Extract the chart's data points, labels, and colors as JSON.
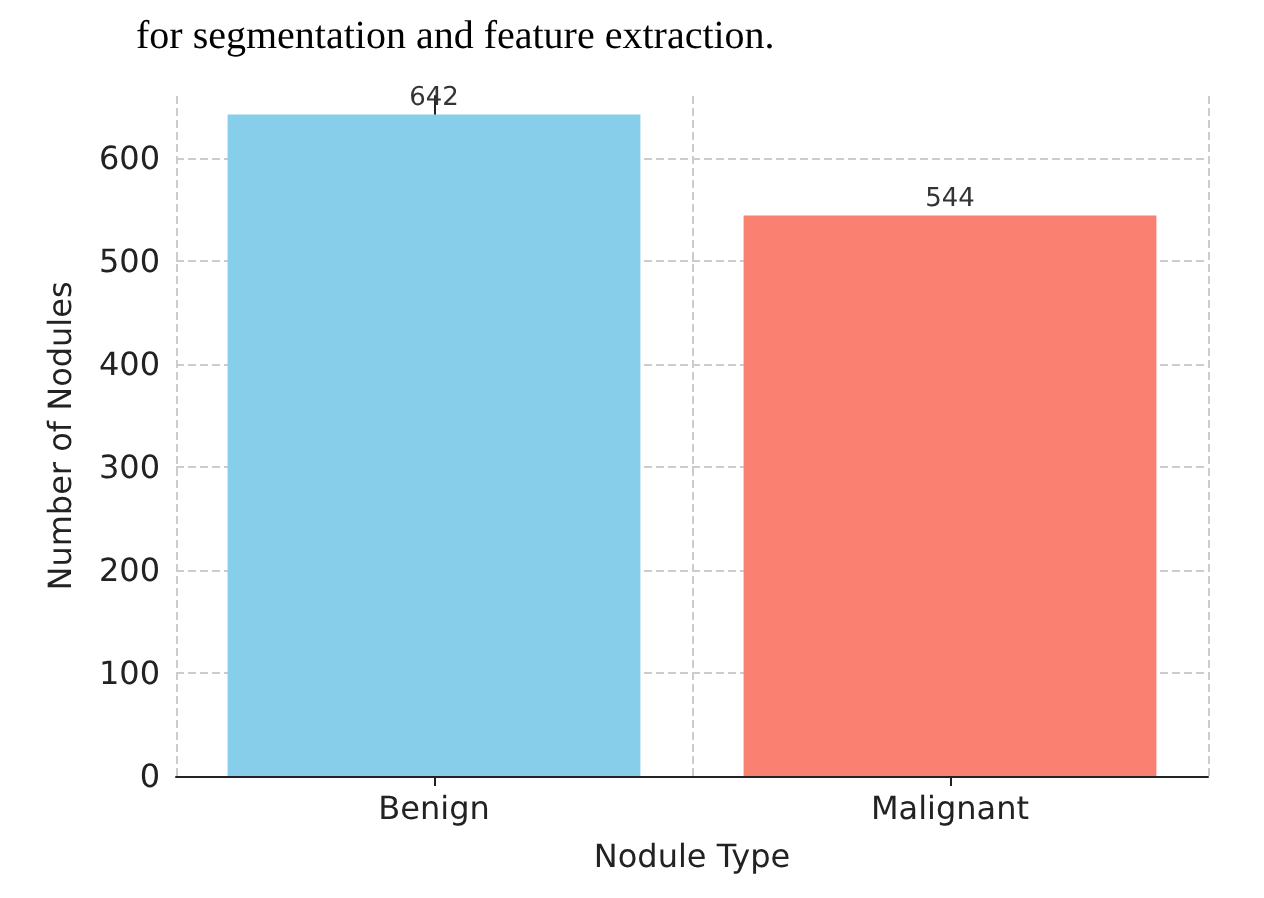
{
  "chart_data": {
    "type": "bar",
    "annotations": [
      "for segmentation and feature extraction."
    ],
    "xlabel": "Nodule Type",
    "ylabel": "Number of Nodules",
    "categories": [
      "Benign",
      "Malignant"
    ],
    "values": [
      642,
      544
    ],
    "colors": [
      "#87ceeb",
      "#fa8072"
    ],
    "ylim": [
      0,
      660
    ],
    "yticks": [
      0,
      100,
      200,
      300,
      400,
      500,
      600
    ],
    "grid": true,
    "data_labels": true
  }
}
